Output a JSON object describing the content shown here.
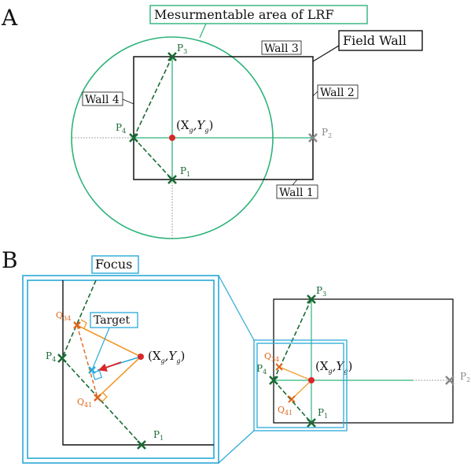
{
  "panel_a": {
    "label": "A",
    "circle_label": "Mesurmentable area of LRF",
    "field_wall_label": "Field Wall",
    "wall_1": "Wall 1",
    "wall_2": "Wall 2",
    "wall_3": "Wall 3",
    "wall_4": "Wall 4",
    "points": {
      "p1": "P",
      "p2": "P",
      "p3": "P",
      "p4": "P",
      "p1_sub": "1",
      "p2_sub": "2",
      "p3_sub": "3",
      "p4_sub": "4"
    },
    "center": "(X",
    "center_g": "g",
    "center_y": ",Y",
    "center_close": ")"
  },
  "panel_b": {
    "label": "B",
    "focus_label": "Focus",
    "target_label": "Target",
    "q34": "Q",
    "q34_sub": "34",
    "q41": "Q",
    "q41_sub": "41"
  },
  "colors": {
    "green": "#1a6b35",
    "teal": "#2db37a",
    "blue": "#29a9d9",
    "orange": "#ef9a2a",
    "red": "#d9262a",
    "gray": "#888888"
  }
}
